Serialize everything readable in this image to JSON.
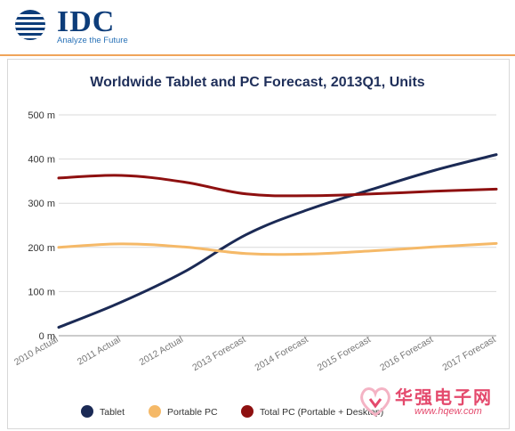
{
  "header": {
    "logo_text": "IDC",
    "logo_tagline": "Analyze the Future"
  },
  "colors": {
    "accent_rule": "#f0a45a",
    "tablet": "#1b2a55",
    "portable": "#f5b968",
    "total": "#8e1010"
  },
  "chart_data": {
    "type": "line",
    "title": "Worldwide Tablet and PC Forecast, 2013Q1, Units",
    "categories": [
      "2010 Actual",
      "2011 Actual",
      "2012 Actual",
      "2013 Forecast",
      "2014 Forecast",
      "2015 Forecast",
      "2016 Forecast",
      "2017 Forecast"
    ],
    "series": [
      {
        "name": "Tablet",
        "color": "#1b2a55",
        "values": [
          19,
          76,
          144,
          229,
          286,
          331,
          374,
          410
        ]
      },
      {
        "name": "Portable PC",
        "color": "#f5b968",
        "values": [
          200,
          208,
          201,
          186,
          185,
          192,
          201,
          209
        ]
      },
      {
        "name": "Total PC (Portable + Desktop)",
        "color": "#8e1010",
        "values": [
          357,
          363,
          348,
          321,
          317,
          321,
          327,
          332
        ]
      }
    ],
    "yticks": [
      "0 m",
      "100 m",
      "200 m",
      "300 m",
      "400 m",
      "500 m"
    ],
    "ylim": [
      0,
      500
    ],
    "grid": true,
    "legend_position": "bottom"
  },
  "watermark": {
    "text": "华强电子网",
    "url": "www.hqew.com"
  }
}
